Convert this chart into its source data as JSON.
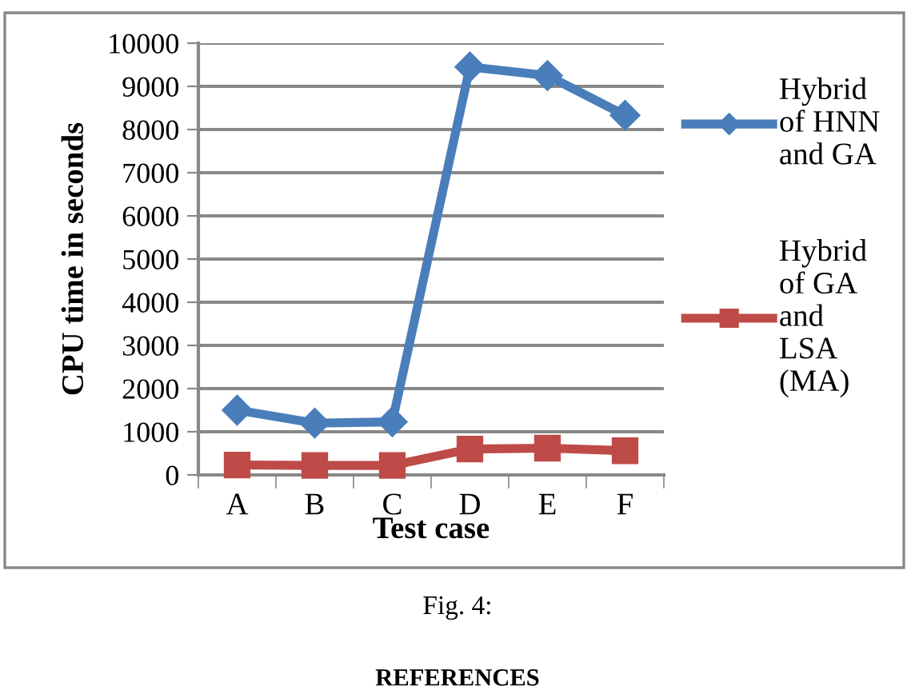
{
  "chart_data": {
    "type": "line",
    "xlabel": "Test case",
    "ylabel": "CPU time in seconds",
    "categories": [
      "A",
      "B",
      "C",
      "D",
      "E",
      "F"
    ],
    "series": [
      {
        "name": "Hybrid\nof HNN\nand GA",
        "color": "#4a7ebb",
        "marker": "diamond",
        "values": [
          1500,
          1200,
          1230,
          9450,
          9250,
          8330
        ]
      },
      {
        "name": "Hybrid\nof GA\nand\nLSA\n(MA)",
        "color": "#be4b48",
        "marker": "square",
        "values": [
          230,
          220,
          220,
          600,
          620,
          560
        ]
      }
    ],
    "ylim": [
      0,
      10000
    ],
    "yticks": [
      0,
      1000,
      2000,
      3000,
      4000,
      5000,
      6000,
      7000,
      8000,
      9000,
      10000
    ],
    "grid": "y",
    "legend": "right",
    "line_style": "solid",
    "annotations": [
      "Fig. 4:",
      "REFERENCES"
    ]
  }
}
